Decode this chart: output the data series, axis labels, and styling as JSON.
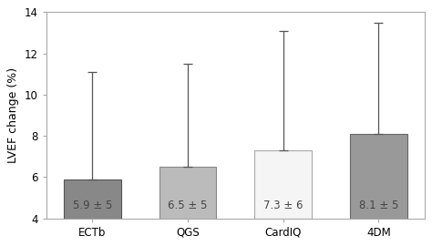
{
  "categories": [
    "ECTb",
    "QGS",
    "CardIQ",
    "4DM"
  ],
  "values": [
    5.9,
    6.5,
    7.3,
    8.1
  ],
  "error_tops": [
    11.1,
    11.5,
    13.1,
    13.5
  ],
  "labels": [
    "5.9 ± 5",
    "6.5 ± 5",
    "7.3 ± 6",
    "8.1 ± 5"
  ],
  "bar_colors": [
    "#888888",
    "#bbbbbb",
    "#f5f5f5",
    "#999999"
  ],
  "bar_edge_colors": [
    "#555555",
    "#888888",
    "#aaaaaa",
    "#666666"
  ],
  "ylabel": "LVEF change (%)",
  "ylim": [
    4,
    14
  ],
  "yticks": [
    4,
    6,
    8,
    10,
    12,
    14
  ],
  "bar_width": 0.6,
  "figure_bg": "#ffffff",
  "axes_bg": "#ffffff",
  "border_color": "#aaaaaa",
  "label_fontsize": 8.5,
  "axis_label_fontsize": 9,
  "tick_fontsize": 8.5,
  "errorbar_color": "#555555",
  "text_color_dark": "#444444",
  "text_color_light": "#333333"
}
